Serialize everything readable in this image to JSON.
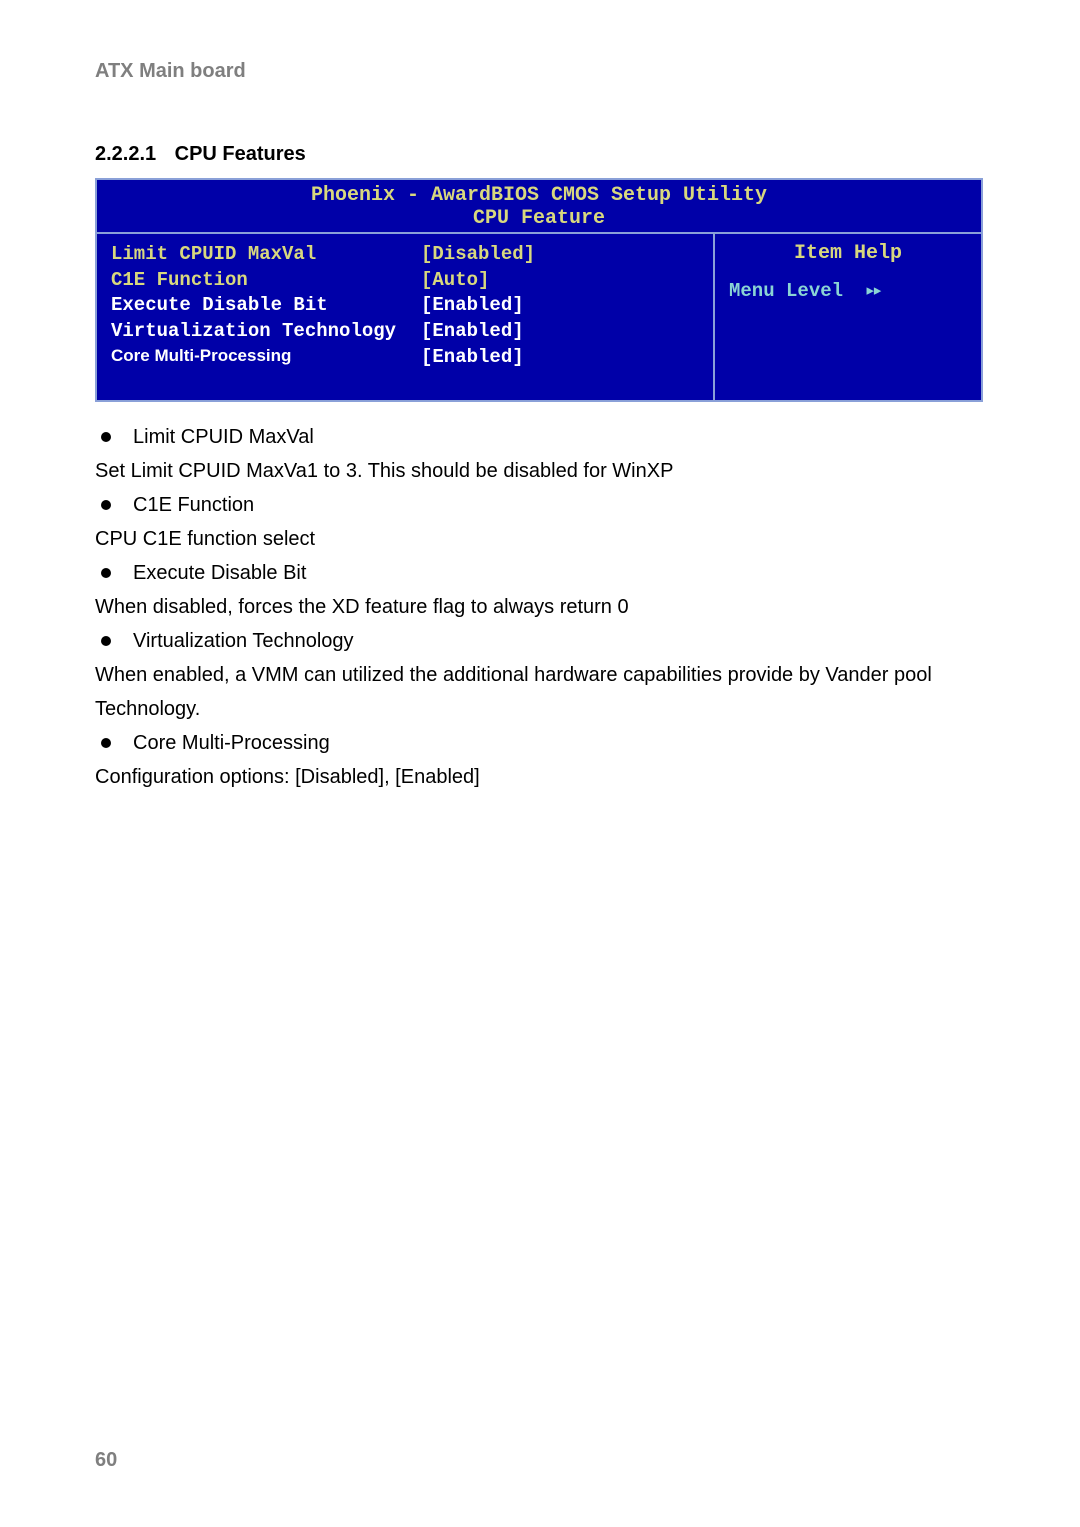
{
  "header": "ATX Main board",
  "section": {
    "number": "2.2.2.1",
    "title": "CPU Features"
  },
  "bios": {
    "title_line1": "Phoenix - AwardBIOS CMOS Setup Utility",
    "title_line2": "CPU Feature",
    "rows": [
      {
        "label": "Limit CPUID MaxVal",
        "value": "[Disabled]",
        "color": "#d8d87e"
      },
      {
        "label": "C1E Function",
        "value": "[Auto]",
        "color": "#d8d87e"
      },
      {
        "label": "Execute Disable Bit",
        "value": "[Enabled]",
        "color": "#ffffff"
      },
      {
        "label": "Virtualization Technology",
        "value": "[Enabled]",
        "color": "#ffffff"
      },
      {
        "label": "Core Multi-Processing",
        "value": "[Enabled]",
        "color": "#ffffff",
        "font": "arial"
      }
    ],
    "help_title": "Item Help",
    "menu_level_label": "Menu Level",
    "arrows": "▸▸",
    "bg_color": "#0000a8",
    "border_color": "#8aa0d8",
    "title_color": "#d8d87e",
    "cyan": "#8ad4d4"
  },
  "body": {
    "b1": "Limit CPUID MaxVal",
    "t1": "Set Limit CPUID MaxVa1 to 3. This should be disabled for WinXP",
    "b2": "C1E Function",
    "t2": "CPU C1E function select",
    "b3": "Execute Disable Bit",
    "t3": "When disabled, forces the XD feature flag to always return 0",
    "b4": "Virtualization Technology",
    "t4": "When enabled, a VMM can utilized the additional hardware capabilities provide by Vander pool Technology.",
    "b5": "Core Multi-Processing",
    "t5": "Configuration options: [Disabled], [Enabled]"
  },
  "page_number": "60"
}
